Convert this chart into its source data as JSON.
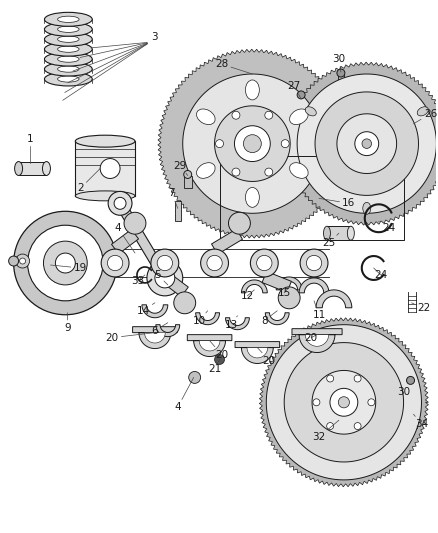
{
  "background_color": "#ffffff",
  "line_color": "#1a1a1a",
  "label_color": "#1a1a1a",
  "label_fontsize": 7.5,
  "fig_width": 4.38,
  "fig_height": 5.33,
  "dpi": 100
}
